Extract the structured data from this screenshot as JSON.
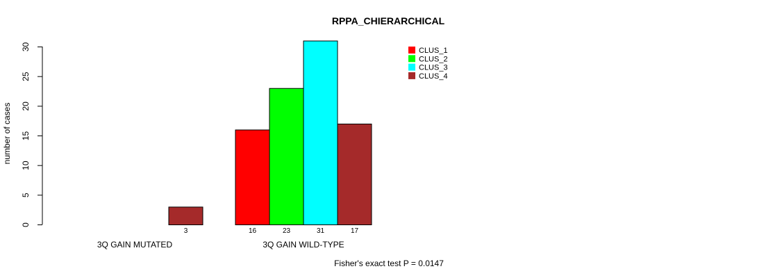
{
  "chart_data": {
    "type": "bar",
    "title": "RPPA_CHIERARCHICAL",
    "ylabel": "number of cases",
    "xlabel": "",
    "ylim": [
      0,
      30
    ],
    "yticks": [
      0,
      5,
      10,
      15,
      20,
      25,
      30
    ],
    "categories": [
      "3Q GAIN MUTATED",
      "3Q GAIN WILD-TYPE"
    ],
    "series": [
      {
        "name": "CLUS_1",
        "color": "#ff0000",
        "values": [
          0,
          16
        ]
      },
      {
        "name": "CLUS_2",
        "color": "#00ff00",
        "values": [
          0,
          23
        ]
      },
      {
        "name": "CLUS_3",
        "color": "#00ffff",
        "values": [
          0,
          31
        ]
      },
      {
        "name": "CLUS_4",
        "color": "#a52a2a",
        "values": [
          3,
          17
        ]
      }
    ],
    "value_labels": [
      [
        "",
        "",
        "",
        "3"
      ],
      [
        "16",
        "23",
        "31",
        "17"
      ]
    ],
    "legend_position": "top-right",
    "grid": false,
    "footnote": "Fisher's exact test P = 0.0147"
  }
}
